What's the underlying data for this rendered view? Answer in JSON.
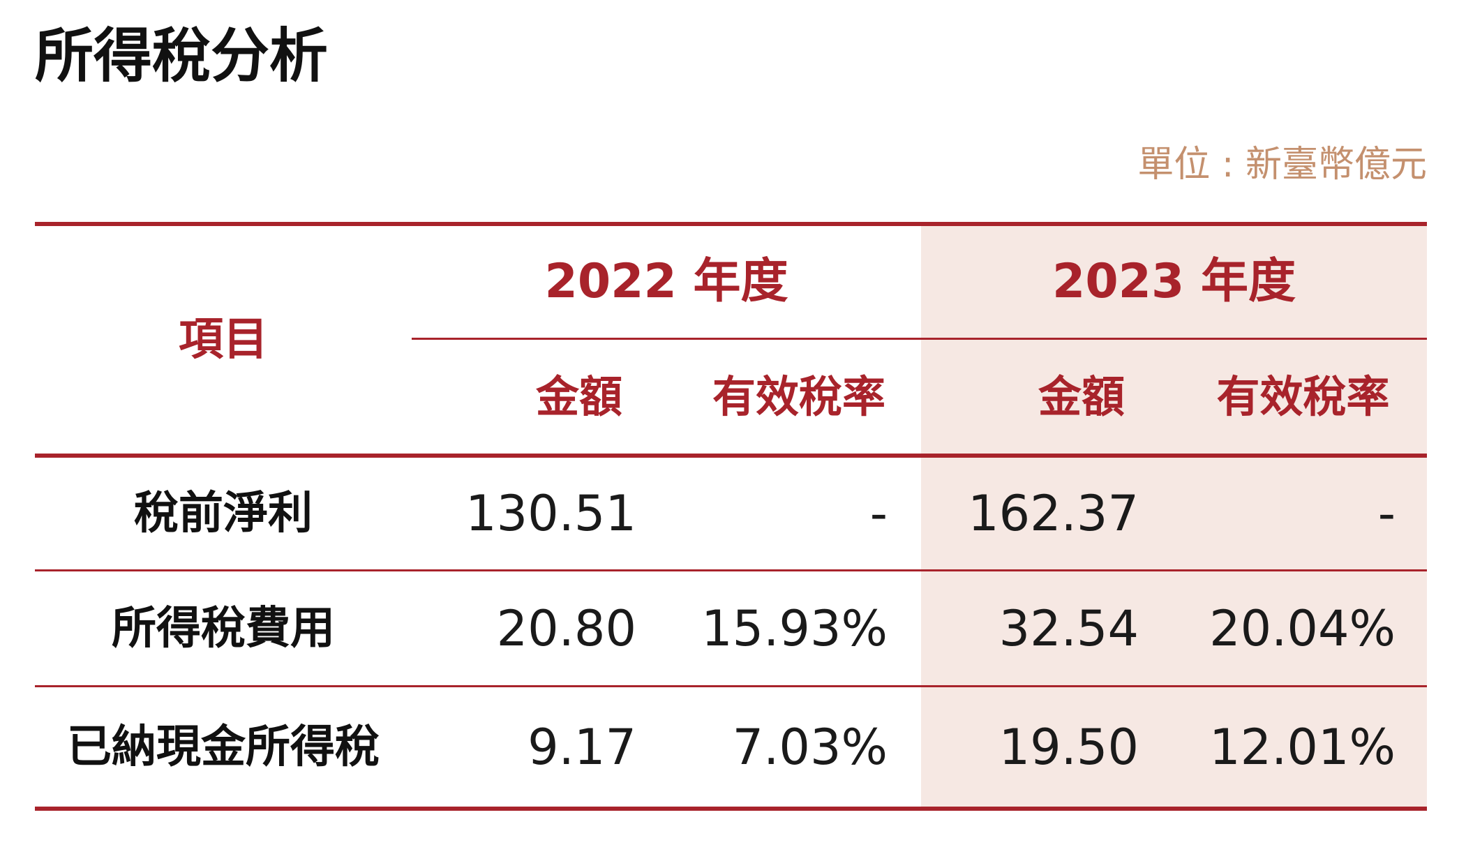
{
  "title": "所得稅分析",
  "unit": "單位 : 新臺幣億元",
  "table": {
    "item_header": "項目",
    "years": [
      {
        "label": "2022 年度",
        "amount_header": "金額",
        "rate_header": "有效稅率"
      },
      {
        "label": "2023 年度",
        "amount_header": "金額",
        "rate_header": "有效稅率"
      }
    ],
    "rows": [
      {
        "label": "稅前淨利",
        "amount_2022": "130.51",
        "rate_2022": "-",
        "amount_2023": "162.37",
        "rate_2023": "-"
      },
      {
        "label": "所得稅費用",
        "amount_2022": "20.80",
        "rate_2022": "15.93%",
        "amount_2023": "32.54",
        "rate_2023": "20.04%"
      },
      {
        "label": "已納現金所得稅",
        "amount_2022": "9.17",
        "rate_2022": "7.03%",
        "amount_2023": "19.50",
        "rate_2023": "12.01%"
      }
    ]
  },
  "colors": {
    "accent": "#a8232b",
    "shade": "#f6e8e3",
    "unit_text": "#c4906e"
  }
}
